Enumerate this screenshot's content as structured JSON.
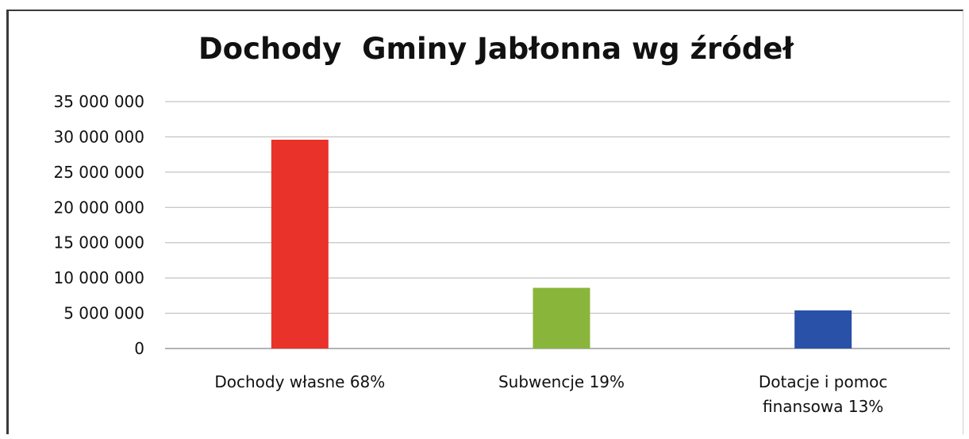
{
  "chart_data": {
    "type": "bar",
    "title": "Dochody  Gminy Jabłonna wg źródeł",
    "categories": [
      [
        "Dochody własne 68%"
      ],
      [
        "Subwencje 19%"
      ],
      [
        "Dotacje i pomoc",
        "finansowa 13%"
      ]
    ],
    "values": [
      29600000,
      8600000,
      5400000
    ],
    "colors": [
      "#e8322a",
      "#8ab53b",
      "#2a51a8"
    ],
    "ylim": [
      0,
      35000000
    ],
    "yticks": [
      0,
      5000000,
      10000000,
      15000000,
      20000000,
      25000000,
      30000000,
      35000000
    ],
    "ytick_labels": [
      "0",
      "5 000 000",
      "10 000 000",
      "15 000 000",
      "20 000 000",
      "25 000 000",
      "30 000 000",
      "35 000 000"
    ],
    "grid": true,
    "legend": false
  }
}
